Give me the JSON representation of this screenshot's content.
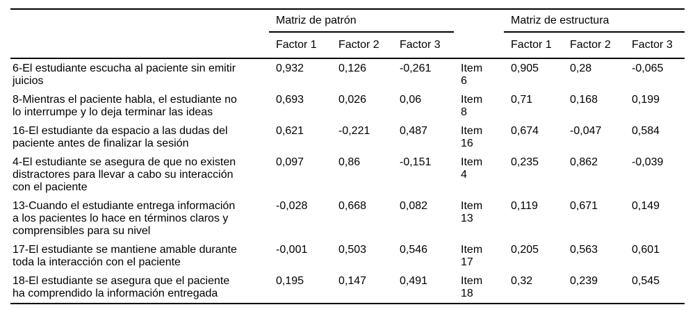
{
  "table": {
    "pattern_matrix_label": "Matriz de patrón",
    "structure_matrix_label": "Matriz de estructura",
    "factor_headers": [
      "Factor 1",
      "Factor 2",
      "Factor 3"
    ],
    "rows": [
      {
        "description": "6-El estudiante escucha al paciente sin emitir juicios",
        "pattern": [
          "0,932",
          "0,126",
          "-0,261"
        ],
        "item": "Item 6",
        "structure": [
          "0,905",
          "0,28",
          "-0,065"
        ]
      },
      {
        "description": "8-Mientras el paciente habla, el estudiante no lo interrumpe y lo deja terminar las ideas",
        "pattern": [
          "0,693",
          "0,026",
          "0,06"
        ],
        "item": "Item 8",
        "structure": [
          "0,71",
          "0,168",
          "0,199"
        ]
      },
      {
        "description": "16-El estudiante da espacio a las dudas del paciente antes de finalizar la sesión",
        "pattern": [
          "0,621",
          "-0,221",
          "0,487"
        ],
        "item": "Item 16",
        "structure": [
          "0,674",
          "-0,047",
          "0,584"
        ]
      },
      {
        "description": "4-El estudiante se asegura de que no existen distractores para llevar a cabo su interacción con el paciente",
        "pattern": [
          "0,097",
          "0,86",
          "-0,151"
        ],
        "item": "Item 4",
        "structure": [
          "0,235",
          "0,862",
          "-0,039"
        ]
      },
      {
        "description": "13-Cuando el estudiante entrega información a los pacientes lo hace en términos claros y comprensibles para su nivel",
        "pattern": [
          "-0,028",
          "0,668",
          "0,082"
        ],
        "item": "Item 13",
        "structure": [
          "0,119",
          "0,671",
          "0,149"
        ]
      },
      {
        "description": "17-El estudiante se mantiene amable durante toda la interacción con el paciente",
        "pattern": [
          "-0,001",
          "0,503",
          "0,546"
        ],
        "item": "Item 17",
        "structure": [
          "0,205",
          "0,563",
          "0,601"
        ]
      },
      {
        "description": "18-El estudiante se asegura que el paciente ha comprendido la información entregada",
        "pattern": [
          "0,195",
          "0,147",
          "0,491"
        ],
        "item": "Item 18",
        "structure": [
          "0,32",
          "0,239",
          "0,545"
        ]
      }
    ]
  }
}
